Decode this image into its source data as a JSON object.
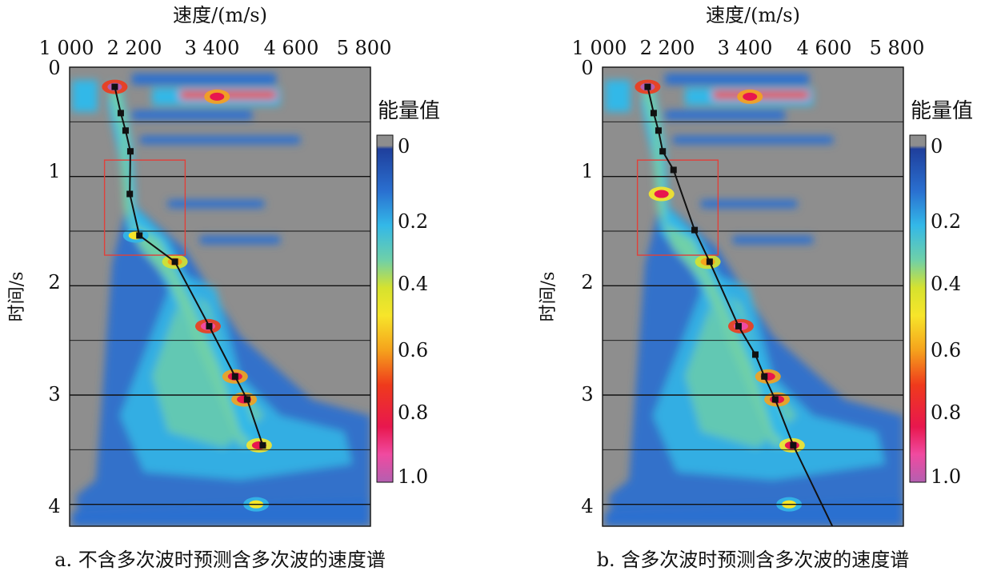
{
  "panels": [
    {
      "caption": "a. 不含多次波时预测含多次波的速度谱",
      "xlabel": "速度/(m/s)",
      "ylabel": "时间/s",
      "colorbar_title": "能量值",
      "colorbar_ticks": [
        "0",
        "0.2",
        "0.4",
        "0.6",
        "0.8",
        "1.0"
      ],
      "x_tick_labels": [
        "1 000",
        "2 200",
        "3 400",
        "4 600",
        "5 800"
      ],
      "y_tick_labels": [
        "0",
        "1",
        "2",
        "3",
        "4"
      ]
    },
    {
      "caption": "b. 含多次波时预测含多次波的速度谱",
      "xlabel": "速度/(m/s)",
      "ylabel": "时间/s",
      "colorbar_title": "能量值",
      "colorbar_ticks": [
        "0",
        "0.2",
        "0.4",
        "0.6",
        "0.8",
        "1.0"
      ],
      "x_tick_labels": [
        "1 000",
        "2 200",
        "3 400",
        "4 600",
        "5 800"
      ],
      "y_tick_labels": [
        "0",
        "1",
        "2",
        "3",
        "4"
      ]
    }
  ],
  "chart_data": [
    {
      "type": "heatmap",
      "xlabel": "速度/(m/s)",
      "ylabel": "时间/s",
      "xlim": [
        1000,
        6000
      ],
      "ylim": [
        0,
        4.2
      ],
      "x_ticks": [
        1000,
        2200,
        3400,
        4600,
        5800
      ],
      "y_ticks": [
        0,
        1,
        2,
        3,
        4
      ],
      "colorbar": {
        "title": "能量值",
        "range": [
          0,
          1.0
        ],
        "ticks": [
          0,
          0.2,
          0.4,
          0.6,
          0.8,
          1.0
        ]
      },
      "colorscale": [
        "#1f3f9c",
        "#2a6fd0",
        "#33b8e8",
        "#6fd0a8",
        "#d6e22e",
        "#f7e52a",
        "#f5a21c",
        "#ef3a1c",
        "#e8174e",
        "#f04aa0",
        "#b45fb0"
      ],
      "background_color": "#8e8e8e",
      "picked_velocity_curve": {
        "time": [
          0.18,
          0.42,
          0.58,
          0.77,
          1.16,
          1.54,
          1.78,
          2.37,
          2.83,
          3.04,
          3.46
        ],
        "velocity": [
          1750,
          1850,
          1930,
          2010,
          2000,
          2160,
          2750,
          3320,
          3750,
          3950,
          4210
        ]
      },
      "highlight_box": {
        "velocity": [
          1580,
          2920
        ],
        "time": [
          0.85,
          1.72
        ],
        "color": "#e0403a"
      },
      "energy_ridges": [
        {
          "time": 0.18,
          "velocity": 1750,
          "energy": 0.95
        },
        {
          "time": 0.27,
          "velocity": 3450,
          "energy": 0.8
        },
        {
          "time": 1.54,
          "velocity": 2100,
          "energy": 0.45
        },
        {
          "time": 1.78,
          "velocity": 2750,
          "energy": 0.6
        },
        {
          "time": 2.37,
          "velocity": 3300,
          "energy": 0.9
        },
        {
          "time": 2.83,
          "velocity": 3750,
          "energy": 0.8
        },
        {
          "time": 3.04,
          "velocity": 3900,
          "energy": 0.8
        },
        {
          "time": 3.46,
          "velocity": 4150,
          "energy": 0.75
        },
        {
          "time": 4.0,
          "velocity": 4100,
          "energy": 0.45
        }
      ]
    },
    {
      "type": "heatmap",
      "xlabel": "速度/(m/s)",
      "ylabel": "时间/s",
      "xlim": [
        1000,
        6000
      ],
      "ylim": [
        0,
        4.2
      ],
      "x_ticks": [
        1000,
        2200,
        3400,
        4600,
        5800
      ],
      "y_ticks": [
        0,
        1,
        2,
        3,
        4
      ],
      "colorbar": {
        "title": "能量值",
        "range": [
          0,
          1.0
        ],
        "ticks": [
          0,
          0.2,
          0.4,
          0.6,
          0.8,
          1.0
        ]
      },
      "colorscale": [
        "#1f3f9c",
        "#2a6fd0",
        "#33b8e8",
        "#6fd0a8",
        "#d6e22e",
        "#f7e52a",
        "#f5a21c",
        "#ef3a1c",
        "#e8174e",
        "#f04aa0",
        "#b45fb0"
      ],
      "background_color": "#8e8e8e",
      "picked_velocity_curve": {
        "time": [
          0.18,
          0.42,
          0.58,
          0.77,
          0.94,
          1.49,
          1.78,
          2.37,
          2.63,
          2.83,
          3.04,
          3.46,
          4.2
        ],
        "velocity": [
          1750,
          1850,
          1930,
          2000,
          2180,
          2530,
          2780,
          3260,
          3540,
          3690,
          3870,
          4170,
          4820
        ]
      },
      "highlight_box": {
        "velocity": [
          1580,
          2920
        ],
        "time": [
          0.85,
          1.72
        ],
        "color": "#e0403a"
      },
      "energy_ridges": [
        {
          "time": 0.18,
          "velocity": 1750,
          "energy": 0.95
        },
        {
          "time": 0.27,
          "velocity": 3450,
          "energy": 0.8
        },
        {
          "time": 1.16,
          "velocity": 1980,
          "energy": 0.75
        },
        {
          "time": 1.78,
          "velocity": 2750,
          "energy": 0.6
        },
        {
          "time": 2.37,
          "velocity": 3300,
          "energy": 0.9
        },
        {
          "time": 2.83,
          "velocity": 3750,
          "energy": 0.8
        },
        {
          "time": 3.04,
          "velocity": 3900,
          "energy": 0.8
        },
        {
          "time": 3.46,
          "velocity": 4150,
          "energy": 0.75
        },
        {
          "time": 4.0,
          "velocity": 4100,
          "energy": 0.45
        }
      ]
    }
  ]
}
